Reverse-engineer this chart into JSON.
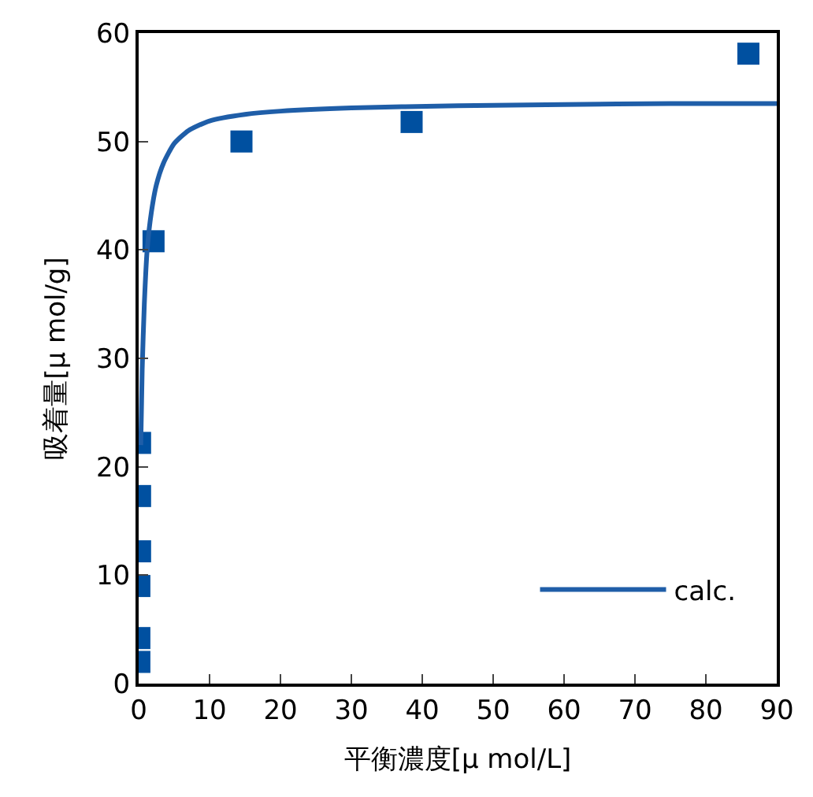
{
  "chart_data": {
    "type": "scatter",
    "xlabel": "平衡濃度[μ mol/L]",
    "ylabel": "吸着量[μ mol/g]",
    "xlim": [
      0,
      90
    ],
    "xticks": [
      0,
      10,
      20,
      30,
      40,
      50,
      60,
      70,
      80,
      90
    ],
    "ylim": [
      0,
      60
    ],
    "yticks": [
      0,
      10,
      20,
      30,
      40,
      50,
      60
    ],
    "legend": "bottom right",
    "series": [
      {
        "marker": "square",
        "color": "#0050a0",
        "x": [
          0.1,
          0.1,
          0.1,
          0.2,
          0.2,
          0.2,
          2.1,
          14.5,
          38.5,
          86
        ],
        "values": [
          2,
          4.2,
          9,
          12.2,
          17.3,
          22.2,
          40.8,
          50,
          51.8,
          58.1
        ]
      },
      {
        "type": "line",
        "marker": "none",
        "name": "calc.",
        "color": "#1f5ea8",
        "x": [
          0.3,
          0.5,
          0.8,
          1.2,
          1.8,
          2.5,
          3.5,
          5,
          7,
          10,
          15,
          20,
          30,
          45,
          60,
          75,
          90
        ],
        "values": [
          22,
          29,
          35,
          40,
          43.5,
          46,
          48,
          49.8,
          51,
          51.9,
          52.5,
          52.8,
          53.1,
          53.3,
          53.4,
          53.5,
          53.5
        ]
      }
    ]
  }
}
